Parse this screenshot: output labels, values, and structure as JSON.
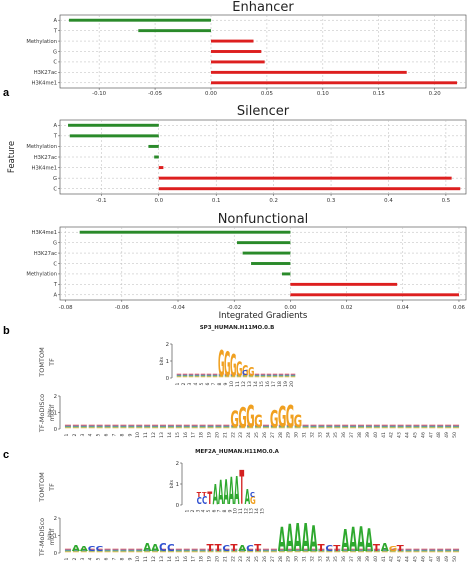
{
  "figure": {
    "panel_a": "a",
    "panel_b": "b",
    "panel_c": "c"
  },
  "colors": {
    "positive": "#dd1f1f",
    "negative": "#2a8a2a",
    "grid": "#b8b8b8",
    "A": "#2ea82e",
    "C": "#2f4fd0",
    "G": "#f0a020",
    "T": "#d42020"
  },
  "chart_data": [
    {
      "type": "bar",
      "orientation": "horizontal",
      "title": "Enhancer",
      "categories": [
        "A",
        "T",
        "Methylation",
        "G",
        "C",
        "H3K27ac",
        "H3K4me1"
      ],
      "values": [
        -0.127,
        -0.065,
        0.038,
        0.045,
        0.048,
        0.175,
        0.22
      ],
      "xlim": [
        -0.135,
        0.228
      ],
      "xticks": [
        -0.1,
        -0.05,
        0.0,
        0.05,
        0.1,
        0.15,
        0.2
      ],
      "xtick_labels": [
        "-0.10",
        "-0.05",
        "0.00",
        "0.05",
        "0.10",
        "0.15",
        "0.20"
      ],
      "grid": true
    },
    {
      "type": "bar",
      "orientation": "horizontal",
      "title": "Silencer",
      "categories": [
        "A",
        "T",
        "Methylation",
        "H3K27ac",
        "H3K4me1",
        "G",
        "C"
      ],
      "values": [
        -0.158,
        -0.155,
        -0.018,
        -0.008,
        0.008,
        0.51,
        0.525
      ],
      "xlim": [
        -0.172,
        0.535
      ],
      "xticks": [
        -0.1,
        0.0,
        0.1,
        0.2,
        0.3,
        0.4,
        0.5
      ],
      "xtick_labels": [
        "-0.1",
        "0.0",
        "0.1",
        "0.2",
        "0.3",
        "0.4",
        "0.5"
      ],
      "ylabel": "Feature",
      "grid": true
    },
    {
      "type": "bar",
      "orientation": "horizontal",
      "title": "Nonfunctional",
      "categories": [
        "H3K4me1",
        "G",
        "H3K27ac",
        "C",
        "Methylation",
        "T",
        "A"
      ],
      "values": [
        -0.075,
        -0.019,
        -0.017,
        -0.014,
        -0.003,
        0.038,
        0.06
      ],
      "xlim": [
        -0.082,
        0.0625
      ],
      "xticks": [
        -0.08,
        -0.06,
        -0.04,
        -0.02,
        0.0,
        0.02,
        0.04,
        0.06
      ],
      "xtick_labels": [
        "-0.08",
        "-0.06",
        "-0.04",
        "-0.02",
        "0.00",
        "0.02",
        "0.04",
        "0.06"
      ],
      "xlabel": "Integrated Gradients",
      "grid": true
    }
  ],
  "motifs": [
    {
      "title": "SP3_HUMAN.H11MO.0.B",
      "row1_label": "TOMTOM",
      "row1_sub": "TF",
      "row2_label": "TF-MoDISco",
      "row2_sub": "motif",
      "ylabel": "bits",
      "yticks": [
        "0",
        "1",
        "2"
      ],
      "row1_positions": [
        "1",
        "2",
        "3",
        "4",
        "5",
        "6",
        "7",
        "8",
        "9",
        "10",
        "11",
        "12",
        "13",
        "14",
        "15",
        "16",
        "17",
        "18",
        "19",
        "20"
      ],
      "row2_positions": [
        "1",
        "2",
        "3",
        "4",
        "5",
        "6",
        "7",
        "8",
        "9",
        "10",
        "11",
        "12",
        "13",
        "14",
        "15",
        "16",
        "17",
        "18",
        "19",
        "20",
        "21",
        "22",
        "23",
        "24",
        "25",
        "26",
        "27",
        "28",
        "29",
        "30",
        "31",
        "32",
        "33",
        "34",
        "35",
        "36",
        "37",
        "38",
        "39",
        "40",
        "41",
        "42",
        "43",
        "44",
        "45",
        "46",
        "47",
        "48",
        "49",
        "50"
      ]
    },
    {
      "title": "MEF2A_HUMAN.H11MO.0.A",
      "row1_label": "TOMTOM",
      "row1_sub": "TF",
      "row2_label": "TF-MoDISco",
      "row2_sub": "motif",
      "ylabel": "bits",
      "yticks": [
        "0",
        "1",
        "2"
      ],
      "row1_positions": [
        "1",
        "2",
        "3",
        "4",
        "5",
        "6",
        "7",
        "8",
        "9",
        "10",
        "11",
        "12",
        "13",
        "14",
        "15"
      ],
      "row2_positions": [
        "1",
        "2",
        "3",
        "4",
        "5",
        "6",
        "7",
        "8",
        "9",
        "10",
        "11",
        "12",
        "13",
        "14",
        "15",
        "16",
        "17",
        "18",
        "19",
        "20",
        "21",
        "22",
        "23",
        "24",
        "25",
        "26",
        "27",
        "28",
        "29",
        "30",
        "31",
        "32",
        "33",
        "34",
        "35",
        "36",
        "37",
        "38",
        "39",
        "40",
        "41",
        "42",
        "43",
        "44",
        "45",
        "46",
        "47",
        "48",
        "49",
        "50"
      ]
    }
  ],
  "logo_data": {
    "sp3_tf": [
      "GG",
      "GG",
      "GG",
      "G",
      "G",
      "G"
    ],
    "sp3_modisco": [
      "GG",
      "GG",
      "GG",
      "G",
      "GG",
      "GG",
      "GG",
      "G"
    ],
    "mef2_tf": [
      "C",
      "C",
      "T",
      "A",
      "A",
      "A",
      "A",
      "A",
      "T",
      "A",
      "G"
    ],
    "mef2_modisco": [
      "A",
      "A",
      "C",
      "C",
      "A",
      "A",
      "C",
      "C",
      "T",
      "T",
      "C",
      "T",
      "A",
      "C",
      "T",
      "A",
      "A",
      "A",
      "A",
      "A",
      "T",
      "C",
      "T",
      "A",
      "A",
      "A",
      "A",
      "T",
      "A",
      "G",
      "T"
    ]
  }
}
